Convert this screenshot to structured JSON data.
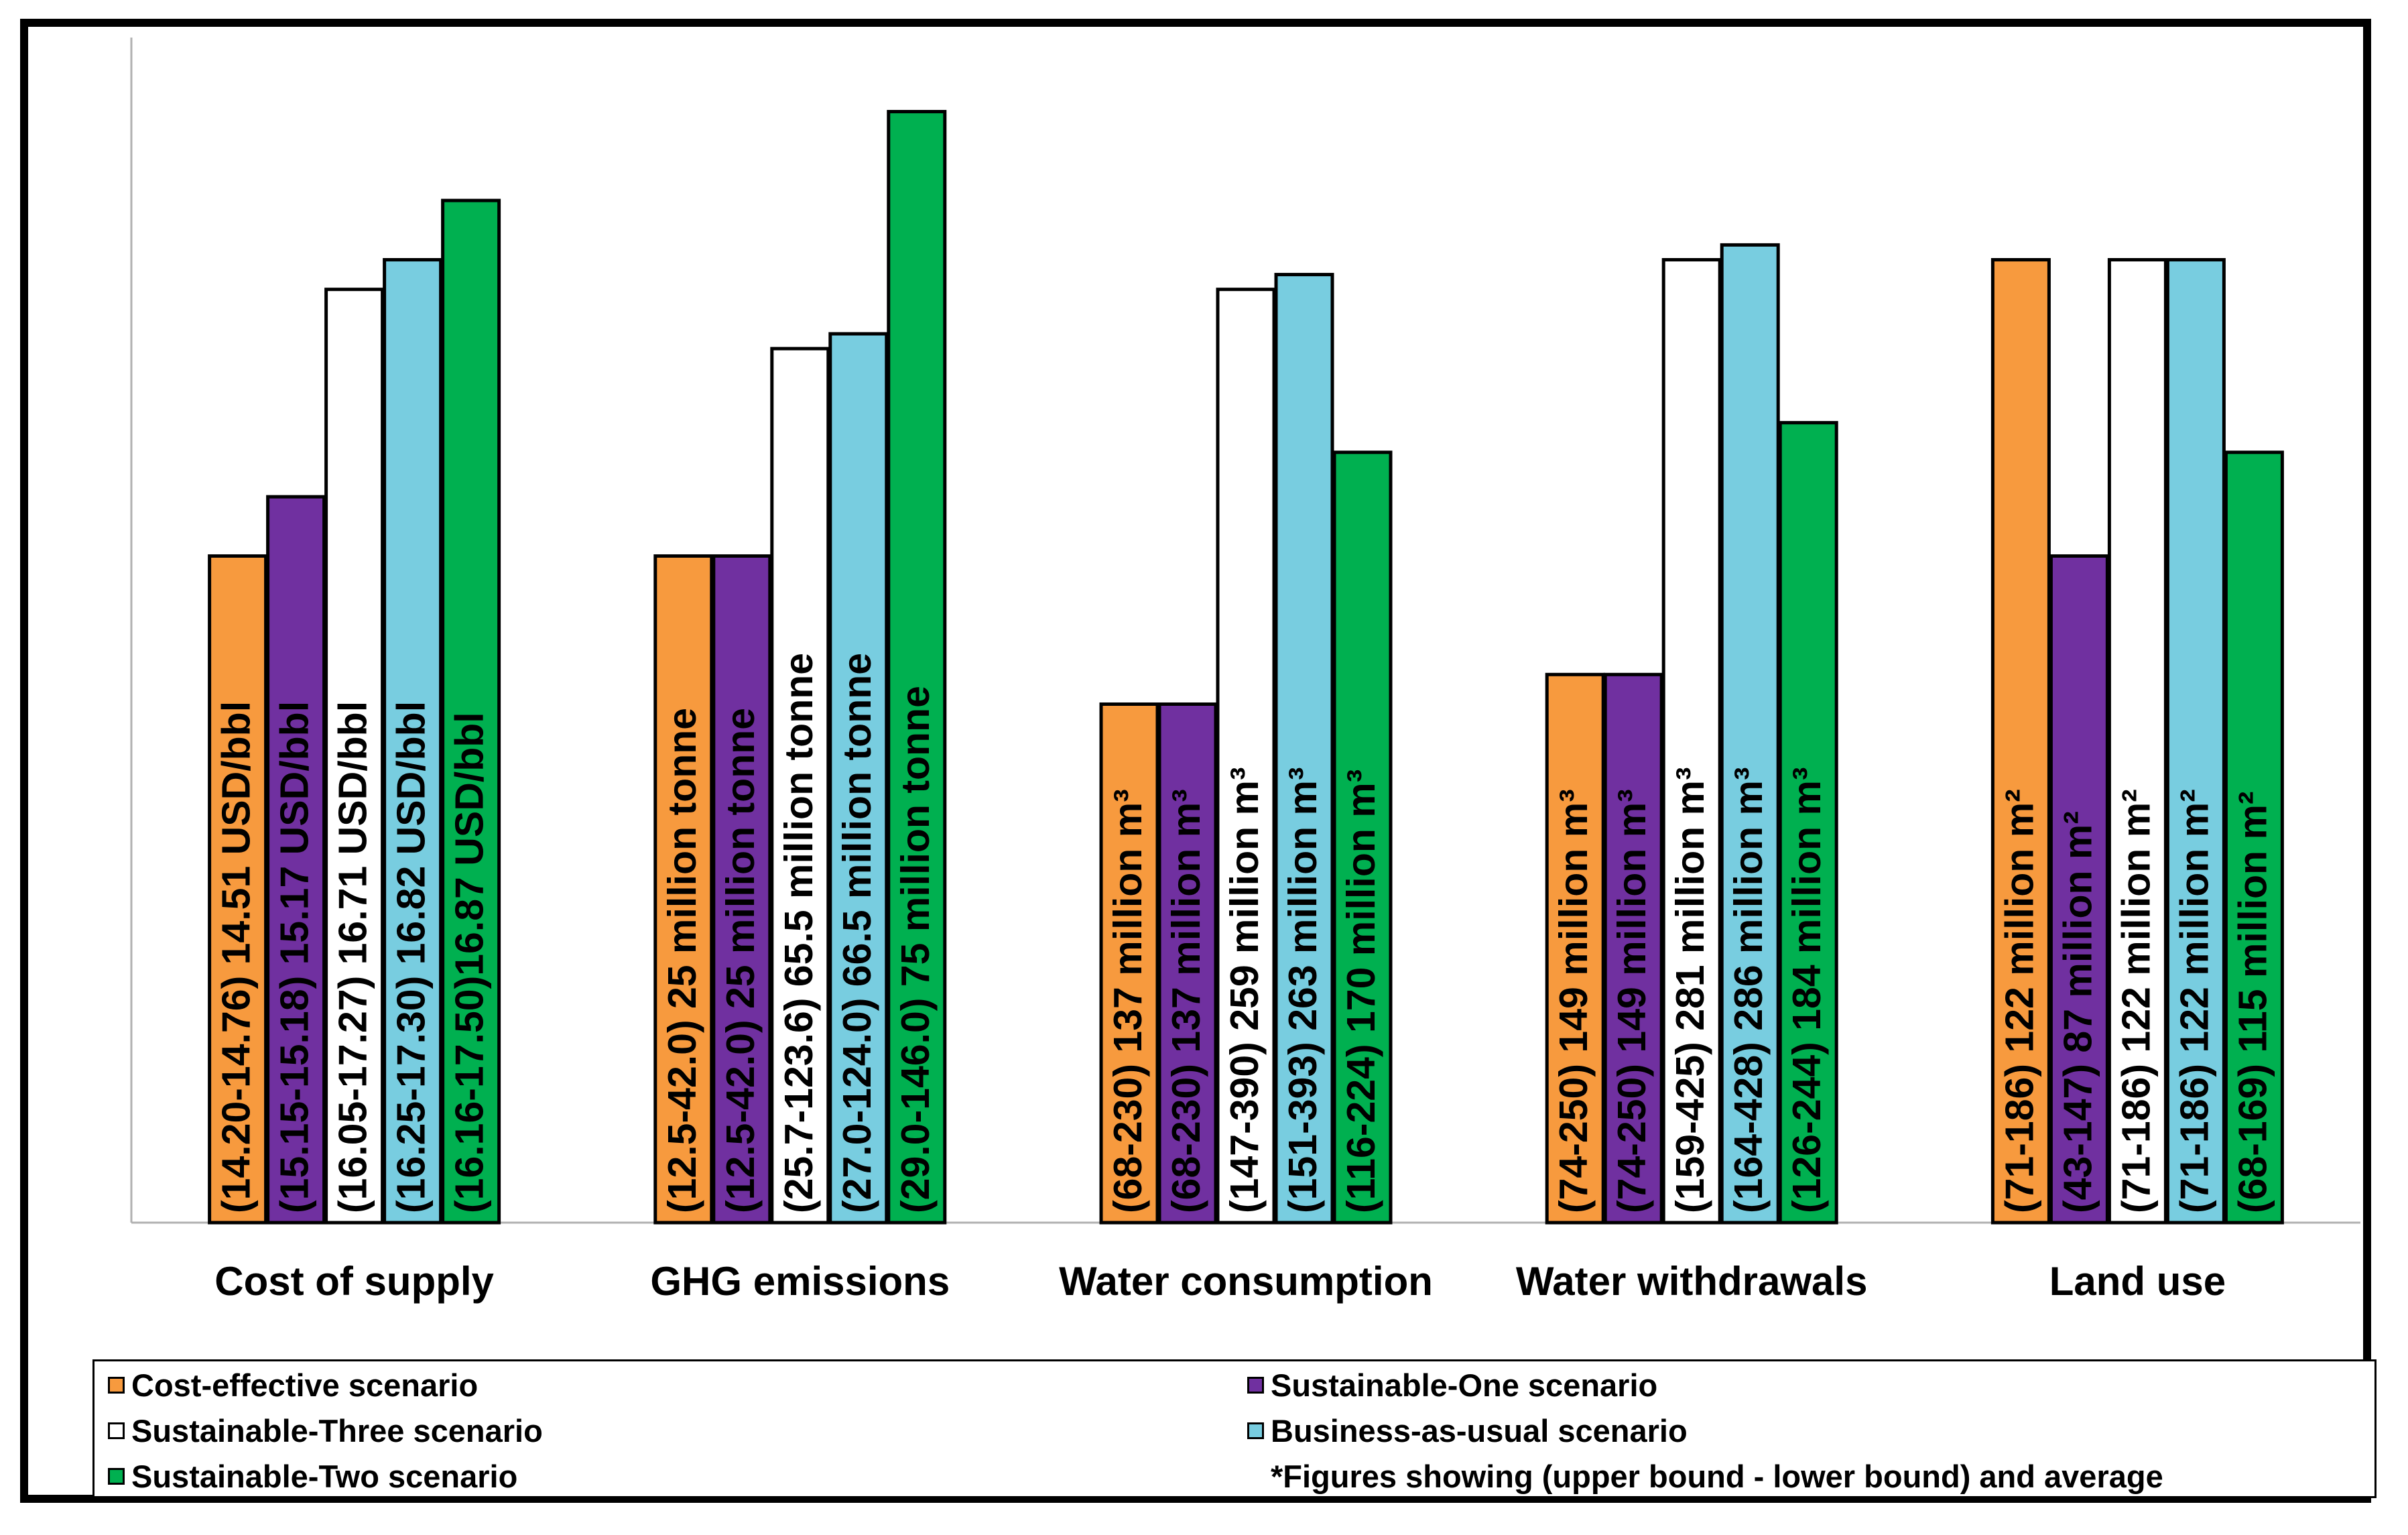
{
  "chart_data": {
    "type": "bar",
    "categories": [
      "Cost of supply",
      "GHG emissions",
      "Water consumption",
      "Water withdrawals",
      "Land use"
    ],
    "colors": [
      "#f79a3e",
      "#7030a0",
      "#ffffff",
      "#78cde0",
      "#00b050"
    ],
    "series": [
      {
        "name": "Cost-effective scenario",
        "values": [
          0.45,
          0.45,
          0.35,
          0.37,
          0.65
        ],
        "labels": [
          "(14.20-14.76) 14.51 USD/bbl",
          "(12.5-42.0) 25 million tonne",
          "(68-230) 137 million m³",
          "(74-250) 149 million m³",
          "(71-186) 122 million m²"
        ]
      },
      {
        "name": "Sustainable-One scenario",
        "values": [
          0.49,
          0.45,
          0.35,
          0.37,
          0.45
        ],
        "labels": [
          "(15.15-15.18) 15.17 USD/bbl",
          "(12.5-42.0) 25 million tonne",
          "(68-230) 137 million m³",
          "(74-250) 149 million m³",
          "(43-147) 87 million m²"
        ]
      },
      {
        "name": "Sustainable-Three scenario",
        "values": [
          0.63,
          0.59,
          0.63,
          0.65,
          0.65
        ],
        "labels": [
          "(16.05-17.27) 16.71 USD/bbl",
          "(25.7-123.6) 65.5 million tonne",
          "(147-390) 259 million m³",
          "(159-425) 281 million m³",
          "(71-186) 122 million m²"
        ]
      },
      {
        "name": "Business-as-usual scenario",
        "values": [
          0.65,
          0.6,
          0.64,
          0.66,
          0.65
        ],
        "labels": [
          "(16.25-17.30) 16.82 USD/bbl",
          "(27.0-124.0) 66.5 million tonne",
          "(151-393) 263 million m³",
          "(164-428) 286 million m³",
          "(71-186) 122 million m²"
        ]
      },
      {
        "name": "Sustainable-Two scenario",
        "values": [
          0.69,
          0.75,
          0.52,
          0.54,
          0.52
        ],
        "labels": [
          "(16.16-17.50)16.87 USD/bbl",
          "(29.0-146.0) 75 million tonne",
          "(116-224) 170 million m³",
          "(126-244) 184 million m³",
          "(68-169) 115 million m²"
        ]
      }
    ],
    "ylim": [
      0,
      0.8
    ],
    "title": "",
    "xlabel": "",
    "ylabel": "",
    "note": "*Figures showing (upper bound - lower bound) and average"
  }
}
